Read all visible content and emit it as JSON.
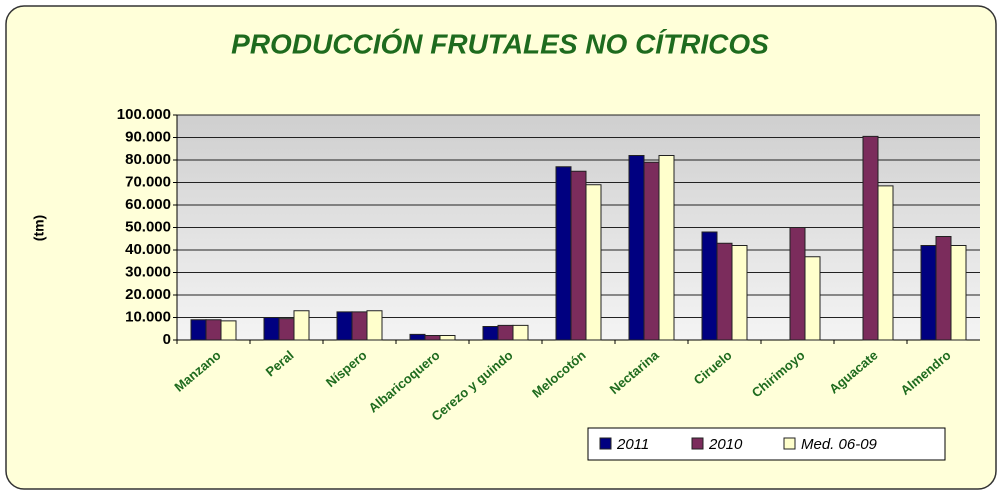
{
  "chart_data": {
    "type": "bar",
    "title": "PRODUCCIÓN FRUTALES NO CÍTRICOS",
    "y_label": "(tm)",
    "categories": [
      "Manzano",
      "Peral",
      "Níspero",
      "Albaricoquero",
      "Cerezo y guindo",
      "Melocotón",
      "Nectarina",
      "Ciruelo",
      "Chirimoyo",
      "Aguacate",
      "Almendro"
    ],
    "series": [
      {
        "name": "2011",
        "color": "#000080",
        "values": [
          9000,
          10000,
          12500,
          2500,
          6000,
          77000,
          82000,
          48000,
          null,
          null,
          42000
        ]
      },
      {
        "name": "2010",
        "color": "#7b2c5c",
        "values": [
          9000,
          9500,
          12500,
          2000,
          6500,
          75000,
          79000,
          43000,
          50000,
          90500,
          46000
        ]
      },
      {
        "name": "Med. 06-09",
        "color": "#ffffcc",
        "values": [
          8500,
          13000,
          13000,
          2000,
          6500,
          69000,
          82000,
          42000,
          37000,
          68500,
          42000
        ]
      }
    ],
    "ylim": [
      0,
      100000
    ],
    "yticks": [
      0,
      {
        "value": 10000,
        "label": "10.000"
      },
      {
        "value": 20000,
        "label": "20.000"
      },
      {
        "value": 30000,
        "label": "30.000"
      },
      {
        "value": 40000,
        "label": "40.000"
      },
      {
        "value": 50000,
        "label": "50.000"
      },
      {
        "value": 60000,
        "label": "60.000"
      },
      {
        "value": 70000,
        "label": "70.000"
      },
      {
        "value": 80000,
        "label": "80.000"
      },
      {
        "value": 90000,
        "label": "90.000"
      },
      {
        "value": 100000,
        "label": "100.000"
      }
    ],
    "grid": true,
    "legend": "bottom-right"
  }
}
